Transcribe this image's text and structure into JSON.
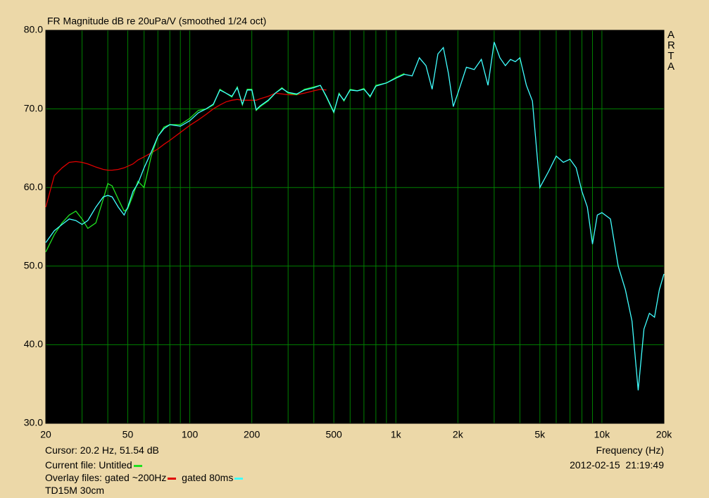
{
  "chart_data": {
    "type": "line",
    "title": "FR Magnitude dB re 20uPa/V (smoothed 1/24 oct)",
    "brand": "ARTA",
    "x_label": "Frequency (Hz)",
    "cursor": "Cursor: 20.2 Hz, 51.54 dB",
    "current_file_label": "Current file:",
    "overlay_label": "Overlay files:",
    "timestamp": "2012-02-15  21:19:49",
    "note": "TD15M 30cm",
    "x_scale": "log",
    "grid": true,
    "grid_color": "#008000",
    "plot_background": "#000000",
    "xlim": [
      20,
      20000
    ],
    "ylim": [
      30,
      80
    ],
    "xticks": [
      20,
      50,
      100,
      200,
      500,
      {
        "value": 1000,
        "label": "1k"
      },
      {
        "value": 2000,
        "label": "2k"
      },
      {
        "value": 5000,
        "label": "5k"
      },
      {
        "value": 10000,
        "label": "10k"
      },
      {
        "value": 20000,
        "label": "20k"
      }
    ],
    "xgrid": [
      30,
      40,
      60,
      70,
      80,
      90,
      300,
      400,
      600,
      700,
      800,
      900,
      3000,
      4000,
      6000,
      7000,
      8000,
      9000
    ],
    "yticks": [
      {
        "value": 30,
        "label": "30.0"
      },
      {
        "value": 40,
        "label": "40.0"
      },
      {
        "value": 50,
        "label": "50.0"
      },
      {
        "value": 60,
        "label": "60.0"
      },
      {
        "value": 70,
        "label": "70.0"
      },
      {
        "value": 80,
        "label": "80.0"
      }
    ],
    "x": [
      20,
      22,
      24,
      26,
      28,
      30,
      32,
      35,
      38,
      40,
      42,
      45,
      48,
      50,
      53,
      56,
      60,
      65,
      70,
      75,
      80,
      90,
      100,
      110,
      120,
      130,
      140,
      150,
      160,
      170,
      180,
      190,
      200,
      210,
      220,
      240,
      260,
      280,
      300,
      330,
      360,
      400,
      430,
      460,
      500,
      530,
      560,
      600,
      650,
      700,
      750,
      800,
      900,
      1000,
      1100,
      1200,
      1300,
      1400,
      1500,
      1600,
      1700,
      1800,
      1900,
      2000,
      2200,
      2400,
      2600,
      2800,
      3000,
      3200,
      3400,
      3600,
      3800,
      4000,
      4300,
      4600,
      5000,
      5500,
      6000,
      6500,
      7000,
      7500,
      8000,
      8500,
      9000,
      9500,
      10000,
      11000,
      12000,
      13000,
      14000,
      15000,
      16000,
      17000,
      18000,
      19000,
      20000
    ],
    "series": [
      {
        "name": "Untitled",
        "color": "#20e020",
        "values": [
          51.8,
          54,
          55.5,
          56.5,
          57.0,
          56.0,
          54.8,
          55.5,
          58.5,
          60.5,
          60.2,
          58.5,
          57.0,
          57.3,
          59.0,
          60.8,
          60.0,
          64.0,
          66.5,
          67.7,
          68.0,
          68.0,
          68.8,
          69.8,
          70.0,
          70.5,
          72.5,
          72.0,
          71.5,
          72.8,
          70.5,
          72.5,
          72.5,
          69.8,
          70.3,
          71.0,
          72.0,
          72.7,
          72.0,
          71.8,
          72.5,
          72.8,
          73.0,
          71.5,
          69.5,
          72.0,
          71.0,
          72.5,
          72.3,
          72.6,
          71.5,
          73.0,
          73.3,
          74.0,
          74.5,
          null,
          null,
          null,
          null,
          null,
          null,
          null,
          null,
          null,
          null,
          null,
          null,
          null,
          null,
          null,
          null,
          null,
          null,
          null,
          null,
          null,
          null,
          null,
          null,
          null,
          null,
          null,
          null,
          null,
          null,
          null,
          null,
          null,
          null,
          null,
          null,
          null,
          null,
          null,
          null,
          null,
          null
        ]
      },
      {
        "name": "gated ~200Hz",
        "color": "#e00000",
        "values": [
          57.5,
          61.5,
          62.5,
          63.2,
          63.3,
          63.2,
          63.0,
          62.6,
          62.3,
          62.2,
          62.2,
          62.3,
          62.5,
          62.7,
          63.0,
          63.5,
          63.9,
          64.4,
          64.9,
          65.5,
          66.0,
          67.0,
          67.9,
          68.6,
          69.3,
          70.0,
          70.5,
          70.9,
          71.1,
          71.2,
          71.1,
          71.1,
          71.1,
          71.1,
          71.3,
          71.6,
          72.0,
          71.9,
          71.8,
          71.8,
          72.0,
          72.3,
          72.5,
          72.4,
          null,
          null,
          null,
          null,
          null,
          null,
          null,
          null,
          null,
          null,
          null,
          null,
          null,
          null,
          null,
          null,
          null,
          null,
          null,
          null,
          null,
          null,
          null,
          null,
          null,
          null,
          null,
          null,
          null,
          null,
          null,
          null,
          null,
          null,
          null,
          null,
          null,
          null,
          null,
          null,
          null,
          null,
          null,
          null,
          null,
          null,
          null,
          null,
          null,
          null,
          null,
          null,
          null
        ]
      },
      {
        "name": "gated 80ms",
        "color": "#40ffff",
        "values": [
          53.0,
          54.5,
          55.3,
          56.0,
          55.8,
          55.3,
          55.8,
          57.5,
          58.8,
          59.0,
          58.8,
          57.5,
          56.5,
          57.5,
          59.5,
          60.5,
          62.5,
          64.5,
          66.5,
          67.5,
          68.0,
          67.8,
          68.5,
          69.5,
          70.0,
          70.6,
          72.4,
          72.0,
          71.6,
          72.7,
          70.6,
          72.4,
          72.4,
          69.9,
          70.4,
          71.1,
          72.0,
          72.6,
          72.1,
          71.9,
          72.4,
          72.7,
          73.0,
          71.6,
          69.6,
          71.9,
          71.1,
          72.4,
          72.3,
          72.5,
          71.6,
          72.9,
          73.3,
          73.9,
          74.4,
          74.2,
          76.5,
          75.5,
          72.5,
          77.0,
          77.8,
          74.5,
          70.3,
          72.0,
          75.3,
          75.0,
          76.3,
          73.0,
          78.5,
          76.5,
          75.5,
          76.3,
          76.0,
          76.5,
          73.0,
          71.0,
          60.0,
          62.0,
          64.0,
          63.2,
          63.6,
          62.5,
          59.5,
          57.5,
          52.8,
          56.5,
          56.8,
          56.0,
          50.0,
          47.0,
          43.0,
          34.2,
          42.0,
          44.0,
          43.5,
          47.0,
          49.0
        ]
      }
    ]
  }
}
